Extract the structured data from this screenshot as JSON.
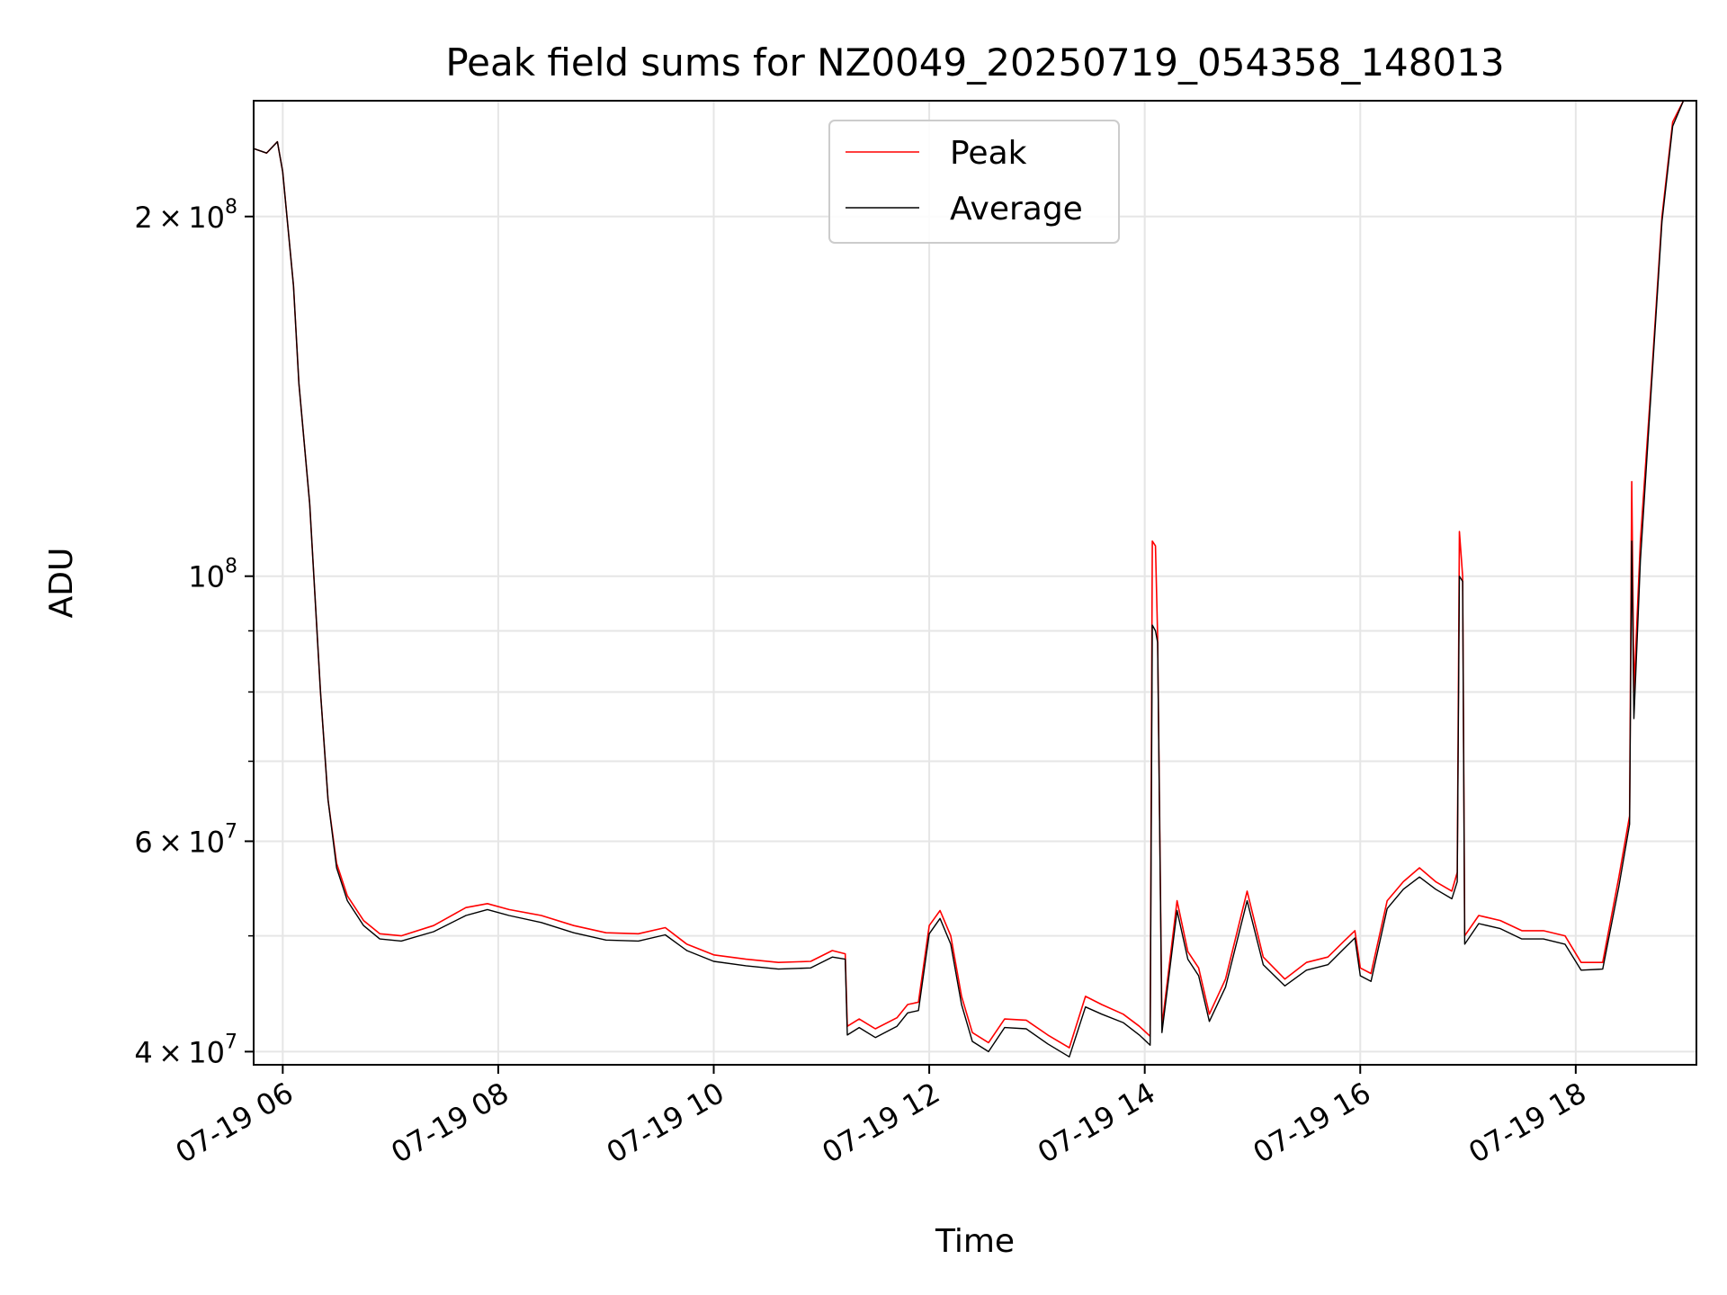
{
  "chart_data": {
    "type": "line",
    "title": "Peak field sums for NZ0049_20250719_054358_148013",
    "xlabel": "Time",
    "ylabel": "ADU",
    "x_unit": "hour of 2025-07-19",
    "xlim": [
      5.73,
      19.12
    ],
    "ylim": [
      39000000,
      250000000
    ],
    "y_scale": "log",
    "grid": true,
    "legend_position": "top-center",
    "x_ticks": [
      {
        "value": 6,
        "label": "07-19 06"
      },
      {
        "value": 8,
        "label": "07-19 08"
      },
      {
        "value": 10,
        "label": "07-19 10"
      },
      {
        "value": 12,
        "label": "07-19 12"
      },
      {
        "value": 14,
        "label": "07-19 14"
      },
      {
        "value": 16,
        "label": "07-19 16"
      },
      {
        "value": 18,
        "label": "07-19 18"
      }
    ],
    "y_major_ticks": [
      {
        "value": 40000000,
        "mantissa": "4",
        "exponent": "7"
      },
      {
        "value": 60000000,
        "mantissa": "6",
        "exponent": "7"
      },
      {
        "value": 100000000,
        "mantissa": "",
        "exponent": "8"
      },
      {
        "value": 200000000,
        "mantissa": "2",
        "exponent": "8"
      }
    ],
    "y_minor_ticks": [
      50000000,
      70000000,
      80000000,
      90000000
    ],
    "series": [
      {
        "name": "Peak",
        "color": "#ff0000",
        "points": [
          [
            5.73,
            228000000
          ],
          [
            5.85,
            226000000
          ],
          [
            5.95,
            231000000
          ],
          [
            6.0,
            218000000
          ],
          [
            6.1,
            175000000
          ],
          [
            6.15,
            145000000
          ],
          [
            6.25,
            115000000
          ],
          [
            6.35,
            80000000
          ],
          [
            6.42,
            65000000
          ],
          [
            6.5,
            57500000
          ],
          [
            6.6,
            54000000
          ],
          [
            6.75,
            51500000
          ],
          [
            6.9,
            50200000
          ],
          [
            7.1,
            50000000
          ],
          [
            7.4,
            51000000
          ],
          [
            7.7,
            52800000
          ],
          [
            7.9,
            53200000
          ],
          [
            8.1,
            52600000
          ],
          [
            8.4,
            52000000
          ],
          [
            8.7,
            51000000
          ],
          [
            9.0,
            50300000
          ],
          [
            9.3,
            50200000
          ],
          [
            9.55,
            50800000
          ],
          [
            9.75,
            49200000
          ],
          [
            10.0,
            48200000
          ],
          [
            10.3,
            47800000
          ],
          [
            10.6,
            47500000
          ],
          [
            10.9,
            47600000
          ],
          [
            11.1,
            48600000
          ],
          [
            11.22,
            48300000
          ],
          [
            11.24,
            42000000
          ],
          [
            11.35,
            42600000
          ],
          [
            11.5,
            41800000
          ],
          [
            11.7,
            42700000
          ],
          [
            11.8,
            43800000
          ],
          [
            11.9,
            44000000
          ],
          [
            12.0,
            51000000
          ],
          [
            12.1,
            52500000
          ],
          [
            12.2,
            50000000
          ],
          [
            12.3,
            44500000
          ],
          [
            12.4,
            41500000
          ],
          [
            12.55,
            40700000
          ],
          [
            12.7,
            42600000
          ],
          [
            12.9,
            42500000
          ],
          [
            13.1,
            41300000
          ],
          [
            13.3,
            40300000
          ],
          [
            13.45,
            44500000
          ],
          [
            13.6,
            43800000
          ],
          [
            13.8,
            43000000
          ],
          [
            13.95,
            42000000
          ],
          [
            14.05,
            41200000
          ],
          [
            14.07,
            107000000
          ],
          [
            14.1,
            106000000
          ],
          [
            14.12,
            89000000
          ],
          [
            14.16,
            42000000
          ],
          [
            14.3,
            53500000
          ],
          [
            14.4,
            48500000
          ],
          [
            14.5,
            47000000
          ],
          [
            14.6,
            43000000
          ],
          [
            14.75,
            46000000
          ],
          [
            14.95,
            54500000
          ],
          [
            15.1,
            48000000
          ],
          [
            15.3,
            46000000
          ],
          [
            15.5,
            47500000
          ],
          [
            15.7,
            48000000
          ],
          [
            15.85,
            49500000
          ],
          [
            15.95,
            50500000
          ],
          [
            16.0,
            47000000
          ],
          [
            16.1,
            46500000
          ],
          [
            16.25,
            53500000
          ],
          [
            16.4,
            55500000
          ],
          [
            16.55,
            57000000
          ],
          [
            16.7,
            55500000
          ],
          [
            16.85,
            54500000
          ],
          [
            16.9,
            56500000
          ],
          [
            16.92,
            109000000
          ],
          [
            16.95,
            100000000
          ],
          [
            16.97,
            50000000
          ],
          [
            17.1,
            52000000
          ],
          [
            17.3,
            51500000
          ],
          [
            17.5,
            50500000
          ],
          [
            17.7,
            50500000
          ],
          [
            17.9,
            50000000
          ],
          [
            18.05,
            47500000
          ],
          [
            18.25,
            47500000
          ],
          [
            18.4,
            56000000
          ],
          [
            18.5,
            63000000
          ],
          [
            18.52,
            120000000
          ],
          [
            18.54,
            80000000
          ],
          [
            18.6,
            107000000
          ],
          [
            18.7,
            145000000
          ],
          [
            18.8,
            200000000
          ],
          [
            18.9,
            240000000
          ],
          [
            19.0,
            250000000
          ]
        ]
      },
      {
        "name": "Average",
        "color": "#000000",
        "points": [
          [
            5.73,
            228000000
          ],
          [
            5.85,
            226000000
          ],
          [
            5.95,
            231000000
          ],
          [
            6.0,
            218000000
          ],
          [
            6.1,
            175000000
          ],
          [
            6.15,
            145000000
          ],
          [
            6.25,
            115000000
          ],
          [
            6.35,
            80000000
          ],
          [
            6.42,
            65000000
          ],
          [
            6.5,
            57000000
          ],
          [
            6.6,
            53500000
          ],
          [
            6.75,
            51000000
          ],
          [
            6.9,
            49700000
          ],
          [
            7.1,
            49500000
          ],
          [
            7.4,
            50400000
          ],
          [
            7.7,
            52000000
          ],
          [
            7.9,
            52600000
          ],
          [
            8.1,
            52000000
          ],
          [
            8.4,
            51300000
          ],
          [
            8.7,
            50300000
          ],
          [
            9.0,
            49600000
          ],
          [
            9.3,
            49500000
          ],
          [
            9.55,
            50100000
          ],
          [
            9.75,
            48600000
          ],
          [
            10.0,
            47600000
          ],
          [
            10.3,
            47200000
          ],
          [
            10.6,
            46900000
          ],
          [
            10.9,
            47000000
          ],
          [
            11.1,
            48000000
          ],
          [
            11.22,
            47800000
          ],
          [
            11.24,
            41300000
          ],
          [
            11.35,
            41900000
          ],
          [
            11.5,
            41100000
          ],
          [
            11.7,
            42000000
          ],
          [
            11.8,
            43100000
          ],
          [
            11.9,
            43300000
          ],
          [
            12.0,
            50200000
          ],
          [
            12.1,
            51700000
          ],
          [
            12.2,
            49200000
          ],
          [
            12.3,
            43800000
          ],
          [
            12.4,
            40800000
          ],
          [
            12.55,
            40000000
          ],
          [
            12.7,
            41900000
          ],
          [
            12.9,
            41800000
          ],
          [
            13.1,
            40600000
          ],
          [
            13.3,
            39600000
          ],
          [
            13.45,
            43600000
          ],
          [
            13.6,
            43000000
          ],
          [
            13.8,
            42300000
          ],
          [
            13.95,
            41300000
          ],
          [
            14.05,
            40500000
          ],
          [
            14.07,
            91000000
          ],
          [
            14.1,
            90000000
          ],
          [
            14.12,
            88000000
          ],
          [
            14.16,
            41500000
          ],
          [
            14.3,
            52500000
          ],
          [
            14.4,
            47800000
          ],
          [
            14.5,
            46300000
          ],
          [
            14.6,
            42400000
          ],
          [
            14.75,
            45300000
          ],
          [
            14.95,
            53500000
          ],
          [
            15.1,
            47300000
          ],
          [
            15.3,
            45400000
          ],
          [
            15.5,
            46800000
          ],
          [
            15.7,
            47300000
          ],
          [
            15.85,
            48800000
          ],
          [
            15.95,
            49800000
          ],
          [
            16.0,
            46300000
          ],
          [
            16.1,
            45800000
          ],
          [
            16.25,
            52700000
          ],
          [
            16.4,
            54700000
          ],
          [
            16.55,
            56000000
          ],
          [
            16.7,
            54700000
          ],
          [
            16.85,
            53700000
          ],
          [
            16.9,
            55500000
          ],
          [
            16.92,
            100000000
          ],
          [
            16.95,
            99000000
          ],
          [
            16.97,
            49200000
          ],
          [
            17.1,
            51200000
          ],
          [
            17.3,
            50700000
          ],
          [
            17.5,
            49700000
          ],
          [
            17.7,
            49700000
          ],
          [
            17.9,
            49200000
          ],
          [
            18.05,
            46800000
          ],
          [
            18.25,
            46900000
          ],
          [
            18.4,
            55000000
          ],
          [
            18.5,
            62000000
          ],
          [
            18.52,
            107000000
          ],
          [
            18.54,
            76000000
          ],
          [
            18.6,
            103000000
          ],
          [
            18.7,
            143000000
          ],
          [
            18.8,
            198000000
          ],
          [
            18.9,
            238000000
          ],
          [
            19.0,
            250000000
          ]
        ]
      }
    ]
  }
}
